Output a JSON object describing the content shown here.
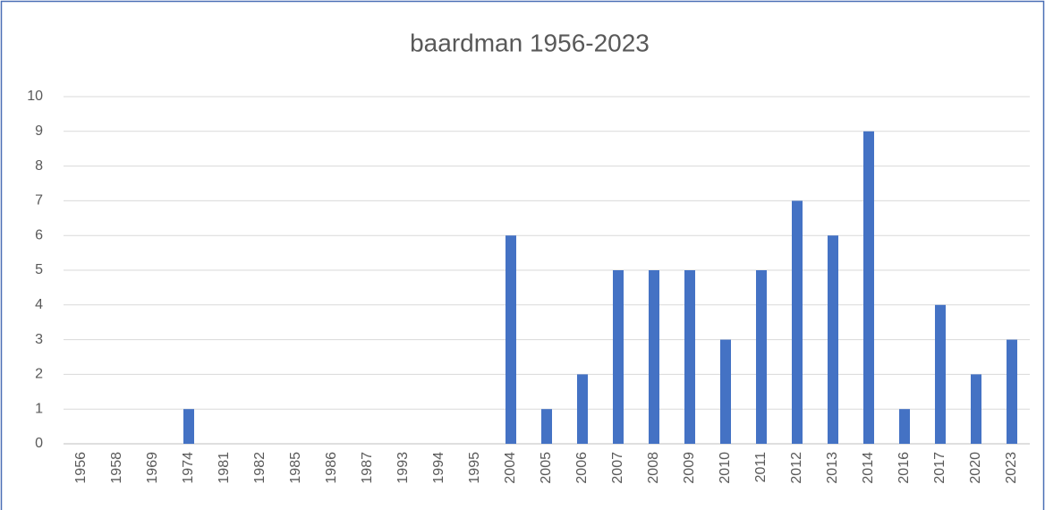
{
  "chart_data": {
    "type": "bar",
    "title": "baardman 1956-2023",
    "categories": [
      "1956",
      "1958",
      "1969",
      "1974",
      "1981",
      "1982",
      "1985",
      "1986",
      "1987",
      "1993",
      "1994",
      "1995",
      "2004",
      "2005",
      "2006",
      "2007",
      "2008",
      "2009",
      "2010",
      "2011",
      "2012",
      "2013",
      "2014",
      "2016",
      "2017",
      "2020",
      "2023"
    ],
    "values": [
      0,
      0,
      0,
      1,
      0,
      0,
      0,
      0,
      0,
      0,
      0,
      0,
      6,
      1,
      2,
      5,
      5,
      5,
      3,
      5,
      7,
      6,
      9,
      1,
      4,
      2,
      3
    ],
    "color": "#4472c4",
    "ylim": [
      0,
      10
    ],
    "yticks": [
      0,
      1,
      2,
      3,
      4,
      5,
      6,
      7,
      8,
      9,
      10
    ],
    "grid": true
  }
}
